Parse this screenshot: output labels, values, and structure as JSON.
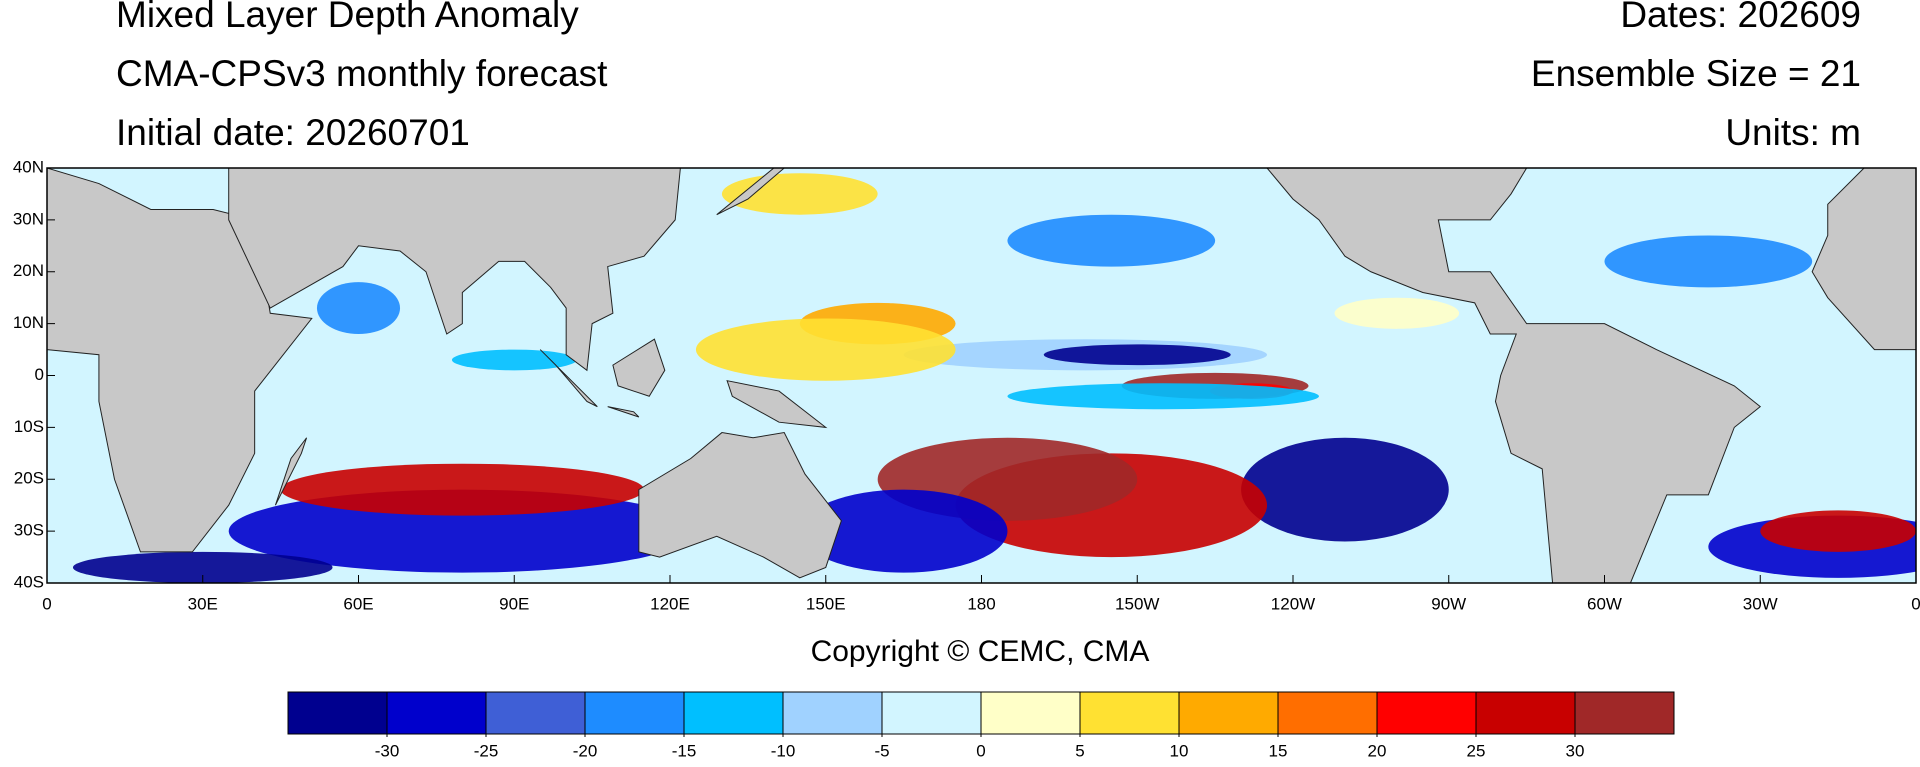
{
  "header": {
    "title": "Mixed Layer Depth Anomaly",
    "subtitle": "CMA-CPSv3 monthly forecast",
    "initial_date": "Initial date: 20260701",
    "dates": "Dates: 202609",
    "ensemble": "Ensemble Size = 21",
    "units": "Units: m"
  },
  "map": {
    "lonlim": [
      0,
      360
    ],
    "latlim": [
      -40,
      40
    ],
    "lon_ticks": [
      0,
      {
        "value": 30,
        "label": "30E"
      },
      {
        "value": 60,
        "label": "60E"
      },
      {
        "value": 90,
        "label": "90E"
      },
      {
        "value": 120,
        "label": "120E"
      },
      {
        "value": 150,
        "label": "150E"
      },
      {
        "value": 180,
        "label": "180"
      },
      {
        "value": 210,
        "label": "150W"
      },
      {
        "value": 240,
        "label": "120W"
      },
      {
        "value": 270,
        "label": "90W"
      },
      {
        "value": 300,
        "label": "60W"
      },
      {
        "value": 330,
        "label": "30W"
      },
      {
        "value": 360,
        "label": "0"
      }
    ],
    "lat_ticks": [
      {
        "value": 40,
        "label": "40N"
      },
      {
        "value": 30,
        "label": "30N"
      },
      {
        "value": 20,
        "label": "20N"
      },
      {
        "value": 10,
        "label": "10N"
      },
      0,
      {
        "value": -10,
        "label": "10S"
      },
      {
        "value": -20,
        "label": "20S"
      },
      {
        "value": -30,
        "label": "30S"
      },
      {
        "value": -40,
        "label": "40S"
      }
    ]
  },
  "copyright": "Copyright © CEMC, CMA",
  "colorbar": {
    "levels": [
      -30,
      -25,
      -20,
      -15,
      -10,
      -5,
      0,
      5,
      10,
      15,
      20,
      25,
      30
    ],
    "colors": [
      "#00008f",
      "#0000cc",
      "#3f5fd6",
      "#1e8cff",
      "#00bfff",
      "#a0d2ff",
      "#d2f5ff",
      "#ffffc8",
      "#ffe132",
      "#ffaa00",
      "#ff6e00",
      "#ff0000",
      "#c80000",
      "#a02828"
    ]
  }
}
